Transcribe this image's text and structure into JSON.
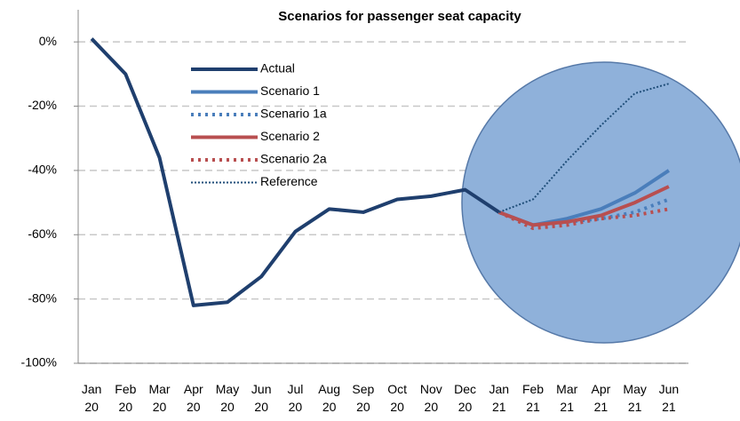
{
  "chart_data": {
    "type": "line",
    "title": "Scenarios for passenger seat capacity",
    "categories": [
      "Jan 20",
      "Feb 20",
      "Mar 20",
      "Apr 20",
      "May 20",
      "Jun 20",
      "Jul 20",
      "Aug 20",
      "Sep 20",
      "Oct 20",
      "Nov 20",
      "Dec 20",
      "Jan 21",
      "Feb 21",
      "Mar 21",
      "Apr 21",
      "May 21",
      "Jun 21"
    ],
    "series": [
      {
        "name": "Actual",
        "color": "#1f3f6e",
        "style": "solid",
        "values": [
          1,
          -10,
          -36,
          -82,
          -81,
          -73,
          -59,
          -52,
          -53,
          -49,
          -48,
          -46,
          -53,
          null,
          null,
          null,
          null,
          null
        ]
      },
      {
        "name": "Scenario 1",
        "color": "#4a7ebb",
        "style": "solid",
        "values": [
          null,
          null,
          null,
          null,
          null,
          null,
          null,
          null,
          null,
          null,
          null,
          null,
          -53,
          -57,
          -55,
          -52,
          -47,
          -40
        ]
      },
      {
        "name": "Scenario 1a",
        "color": "#4a7ebb",
        "style": "dotted",
        "values": [
          null,
          null,
          null,
          null,
          null,
          null,
          null,
          null,
          null,
          null,
          null,
          null,
          -53,
          -57,
          -56,
          -55,
          -53,
          -49
        ]
      },
      {
        "name": "Scenario 2",
        "color": "#b84f50",
        "style": "solid",
        "values": [
          null,
          null,
          null,
          null,
          null,
          null,
          null,
          null,
          null,
          null,
          null,
          null,
          -53,
          -57,
          -56,
          -54,
          -50,
          -45
        ]
      },
      {
        "name": "Scenario 2a",
        "color": "#b84f50",
        "style": "dotted",
        "values": [
          null,
          null,
          null,
          null,
          null,
          null,
          null,
          null,
          null,
          null,
          null,
          null,
          -53,
          -58,
          -57,
          -55,
          -54,
          -52
        ]
      },
      {
        "name": "Reference",
        "color": "#1f4e79",
        "style": "fine-dotted",
        "values": [
          null,
          null,
          null,
          null,
          null,
          null,
          null,
          null,
          null,
          null,
          null,
          null,
          -53,
          -49,
          -37,
          -26,
          -16,
          -13
        ]
      }
    ],
    "ylim": [
      -100,
      10
    ],
    "yticks": [
      {
        "value": 0,
        "label": "0%"
      },
      {
        "value": -20,
        "label": "-20%"
      },
      {
        "value": -40,
        "label": "-40%"
      },
      {
        "value": -60,
        "label": "-60%"
      },
      {
        "value": -80,
        "label": "-80%"
      },
      {
        "value": -100,
        "label": "-100%"
      }
    ],
    "grid": true
  }
}
